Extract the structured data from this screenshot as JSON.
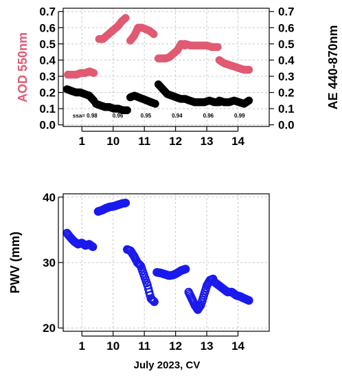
{
  "colors": {
    "aod": "#e05a72",
    "ae": "#000000",
    "pwv": "#1a1aee"
  },
  "chart_data": [
    {
      "type": "scatter",
      "ylabel_left": "AOD 550nm",
      "ylabel_right": "AE 440-870nm",
      "xlim": [
        0,
        6.6
      ],
      "ylim": [
        -0.01,
        0.72
      ],
      "x_ticks": [
        {
          "x": 0.6,
          "label": "1"
        },
        {
          "x": 1.6,
          "label": "10"
        },
        {
          "x": 2.6,
          "label": "11"
        },
        {
          "x": 3.6,
          "label": "12"
        },
        {
          "x": 4.6,
          "label": "13"
        },
        {
          "x": 5.6,
          "label": "14"
        }
      ],
      "y_ticks_left": [
        {
          "v": 0.0,
          "label": "0.0"
        },
        {
          "v": 0.1,
          "label": "0.1"
        },
        {
          "v": 0.2,
          "label": "0.2"
        },
        {
          "v": 0.3,
          "label": "0.3"
        },
        {
          "v": 0.4,
          "label": "0.4"
        },
        {
          "v": 0.5,
          "label": "0.5"
        },
        {
          "v": 0.6,
          "label": "0.6"
        },
        {
          "v": 0.7,
          "label": "0.7"
        }
      ],
      "y_ticks_right": [
        {
          "v": 0.0,
          "label": "0.0"
        },
        {
          "v": 0.1,
          "label": "0.1"
        },
        {
          "v": 0.2,
          "label": "0.2"
        },
        {
          "v": 0.3,
          "label": "0.3"
        },
        {
          "v": 0.4,
          "label": "0.4"
        },
        {
          "v": 0.5,
          "label": "0.5"
        },
        {
          "v": 0.6,
          "label": "0.6"
        },
        {
          "v": 0.7,
          "label": "0.7"
        }
      ],
      "annotations": [
        {
          "x": 0.7,
          "label": "ssa= 0.98"
        },
        {
          "x": 1.75,
          "label": "0.96"
        },
        {
          "x": 2.65,
          "label": "0.95"
        },
        {
          "x": 3.65,
          "label": "0.94"
        },
        {
          "x": 4.65,
          "label": "0.96"
        },
        {
          "x": 5.65,
          "label": "0.99"
        }
      ],
      "annotation_y": 0.045,
      "series": [
        {
          "role": "aod",
          "segments": [
            {
              "x0": 0.15,
              "x1": 0.98,
              "y": [
                0.31,
                0.31,
                0.31,
                0.32,
                0.32,
                0.33,
                0.32
              ]
            },
            {
              "x0": 1.15,
              "x1": 2.0,
              "y": [
                0.53,
                0.53,
                0.55,
                0.57,
                0.59,
                0.61,
                0.64,
                0.66
              ]
            },
            {
              "x0": 2.15,
              "x1": 2.9,
              "y": [
                0.52,
                0.55,
                0.6,
                0.6,
                0.59,
                0.58,
                0.56
              ]
            },
            {
              "x0": 3.05,
              "x1": 3.9,
              "y": [
                0.41,
                0.41,
                0.41,
                0.42,
                0.44,
                0.46,
                0.5,
                0.49
              ]
            },
            {
              "x0": 3.9,
              "x1": 4.95,
              "y": [
                0.5,
                0.49,
                0.49,
                0.49,
                0.49,
                0.48,
                0.48
              ]
            },
            {
              "x0": 5.0,
              "x1": 5.95,
              "y": [
                0.4,
                0.38,
                0.37,
                0.36,
                0.35,
                0.34,
                0.34
              ]
            }
          ]
        },
        {
          "role": "ae",
          "segments": [
            {
              "x0": 0.12,
              "x1": 0.98,
              "y": [
                0.22,
                0.21,
                0.2,
                0.2,
                0.19,
                0.18,
                0.15
              ]
            },
            {
              "x0": 1.05,
              "x1": 2.05,
              "y": [
                0.13,
                0.12,
                0.11,
                0.11,
                0.1,
                0.1,
                0.09,
                0.09
              ]
            },
            {
              "x0": 2.15,
              "x1": 2.95,
              "y": [
                0.17,
                0.18,
                0.17,
                0.16,
                0.15,
                0.14,
                0.13
              ]
            },
            {
              "x0": 3.05,
              "x1": 4.05,
              "y": [
                0.25,
                0.22,
                0.19,
                0.18,
                0.17,
                0.16,
                0.16,
                0.15
              ]
            },
            {
              "x0": 4.05,
              "x1": 5.0,
              "y": [
                0.15,
                0.14,
                0.14,
                0.14,
                0.15,
                0.14,
                0.14
              ]
            },
            {
              "x0": 5.0,
              "x1": 5.95,
              "y": [
                0.15,
                0.14,
                0.14,
                0.15,
                0.14,
                0.13,
                0.15
              ]
            }
          ]
        }
      ]
    },
    {
      "type": "scatter",
      "ylabel": "PWV (mm)",
      "xlabel": "July 2023, CV",
      "xlim": [
        0,
        6.6
      ],
      "ylim": [
        19.5,
        40.5
      ],
      "x_ticks": [
        {
          "x": 0.6,
          "label": "1"
        },
        {
          "x": 1.6,
          "label": "10"
        },
        {
          "x": 2.6,
          "label": "11"
        },
        {
          "x": 3.6,
          "label": "12"
        },
        {
          "x": 4.6,
          "label": "13"
        },
        {
          "x": 5.6,
          "label": "14"
        }
      ],
      "y_ticks": [
        {
          "v": 20,
          "label": "20"
        },
        {
          "v": 30,
          "label": "30"
        },
        {
          "v": 40,
          "label": "40"
        }
      ],
      "series": [
        {
          "role": "pwv",
          "segments": [
            {
              "x0": 0.12,
              "x1": 0.95,
              "y": [
                34.5,
                33.8,
                33.2,
                32.8,
                33.0,
                32.6,
                32.8,
                32.4
              ]
            },
            {
              "x0": 1.12,
              "x1": 2.0,
              "y": [
                37.8,
                38.0,
                38.3,
                38.5,
                38.6,
                38.8,
                39.0,
                39.1
              ]
            },
            {
              "x0": 2.05,
              "x1": 2.92,
              "y": [
                32.0,
                31.8,
                31.0,
                30.0,
                29.5,
                28.0,
                26.5,
                24.5,
                24.0
              ]
            },
            {
              "x0": 3.0,
              "x1": 3.92,
              "y": [
                28.5,
                28.4,
                28.2,
                28.0,
                28.1,
                28.4,
                28.8,
                29.0
              ]
            },
            {
              "x0": 4.02,
              "x1": 4.8,
              "y": [
                25.5,
                24.5,
                23.5,
                22.8,
                23.5,
                25.0,
                26.5,
                27.3,
                27.5
              ]
            },
            {
              "x0": 4.85,
              "x1": 5.95,
              "y": [
                27.0,
                26.5,
                26.0,
                25.5,
                25.5,
                25.0,
                24.8,
                24.5,
                24.2
              ]
            }
          ]
        }
      ]
    }
  ]
}
